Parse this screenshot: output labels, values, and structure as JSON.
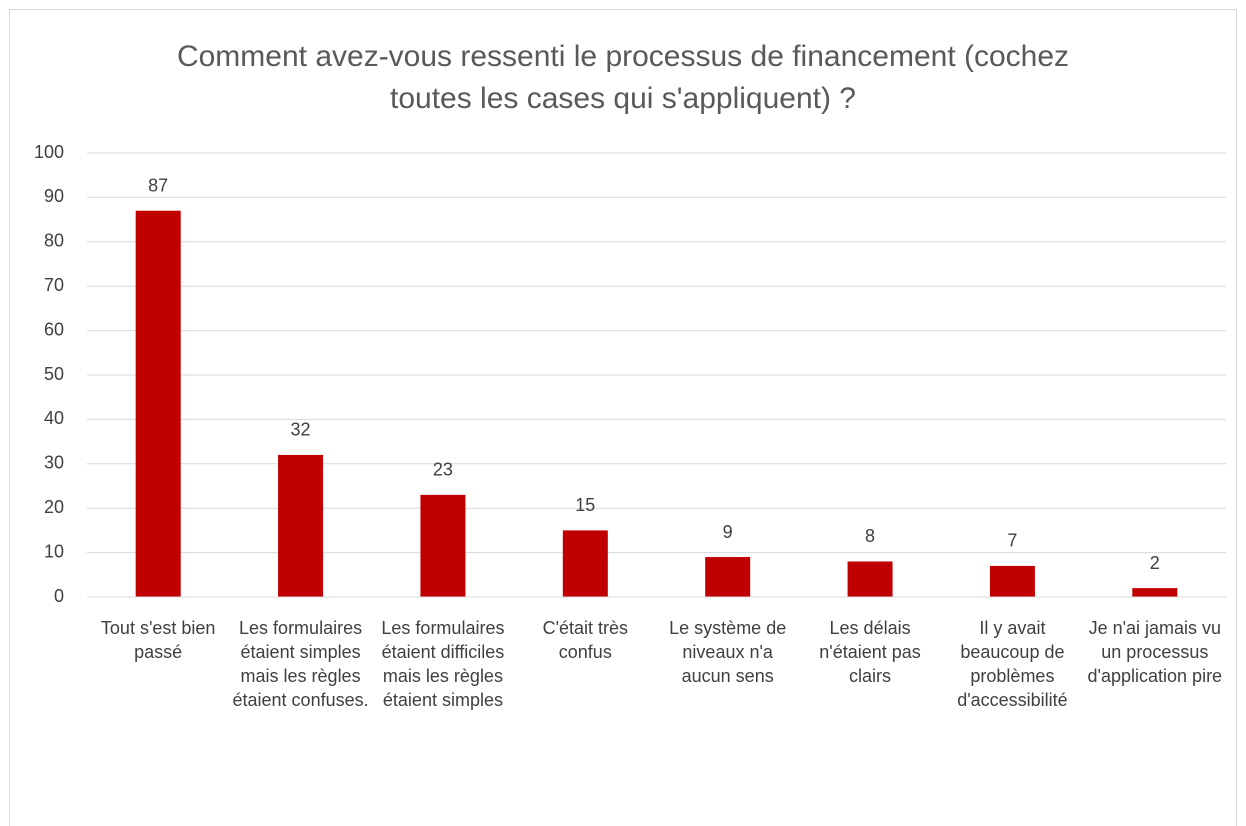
{
  "chart_data": {
    "type": "bar",
    "title": "Comment avez-vous ressenti le processus de financement (cochez toutes les cases qui s'appliquent) ?",
    "categories": [
      "Tout s'est bien passé",
      "Les formulaires étaient simples mais les règles étaient confuses.",
      "Les formulaires étaient difficiles mais les règles étaient simples",
      "C'était très confus",
      "Le système de niveaux n'a aucun sens",
      "Les délais n'étaient pas clairs",
      "Il y avait beaucoup de problèmes d'accessibilité",
      "Je n'ai jamais vu un processus d'application pire"
    ],
    "values": [
      87,
      32,
      23,
      15,
      9,
      8,
      7,
      2
    ],
    "color": "#c00000",
    "ylim": [
      0,
      100
    ],
    "yticks": [
      0,
      10,
      20,
      30,
      40,
      50,
      60,
      70,
      80,
      90,
      100
    ],
    "grid": true
  }
}
